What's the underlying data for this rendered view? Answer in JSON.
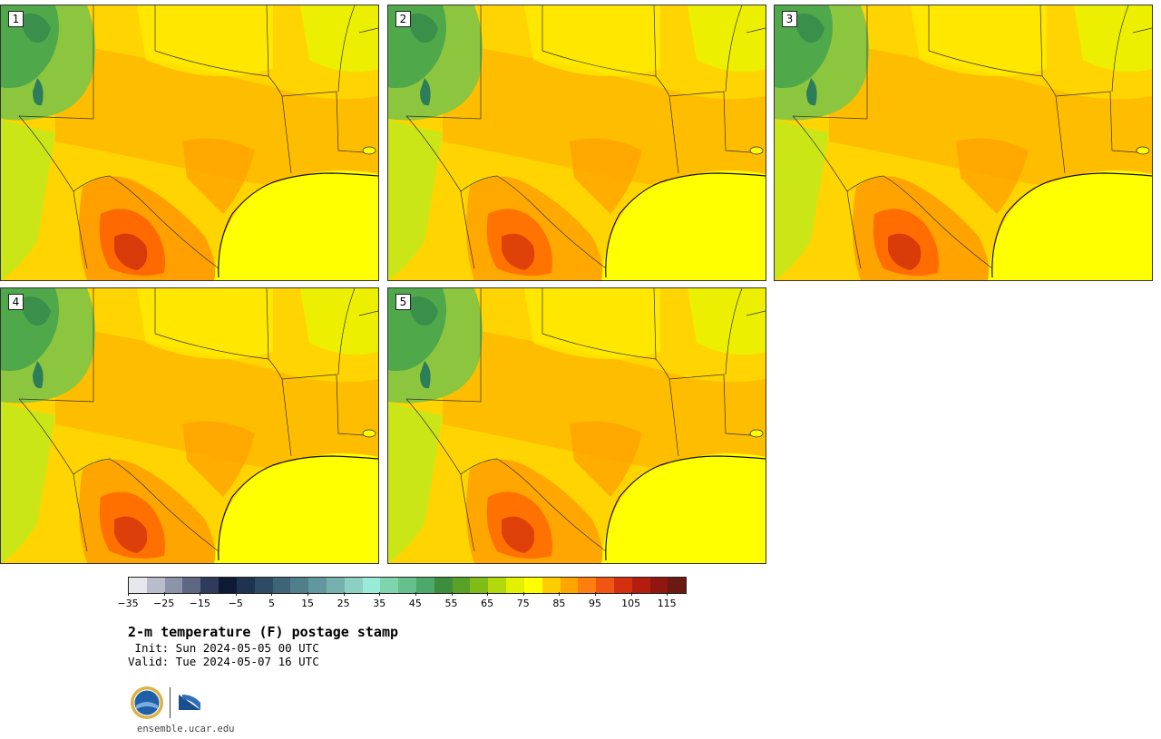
{
  "panels": [
    {
      "label": "1",
      "heat": 1.0
    },
    {
      "label": "2",
      "heat": 0.85
    },
    {
      "label": "3",
      "heat": 0.95
    },
    {
      "label": "4",
      "heat": 0.9
    },
    {
      "label": "5",
      "heat": 0.88
    }
  ],
  "colorbar": {
    "colors": [
      "#e6e8ee",
      "#b9bccb",
      "#8e94a8",
      "#5e6784",
      "#303b5c",
      "#0e1a35",
      "#1d3350",
      "#2e4b66",
      "#3e6477",
      "#507f8b",
      "#63979f",
      "#78b0b0",
      "#8ccfc3",
      "#99ead7",
      "#7fd3ad",
      "#66bf8c",
      "#4ea86b",
      "#3c8e3d",
      "#58a126",
      "#80bc17",
      "#b3d90c",
      "#e3f000",
      "#ffff00",
      "#ffcc00",
      "#ffa500",
      "#ff7f0e",
      "#f05513",
      "#d2300f",
      "#b31d10",
      "#8f1710",
      "#6a1a10"
    ],
    "ticks": [
      "−35",
      "−25",
      "−15",
      "−5",
      "5",
      "15",
      "25",
      "35",
      "45",
      "55",
      "65",
      "75",
      "85",
      "95",
      "105",
      "115"
    ]
  },
  "title": "2-m temperature (F) postage stamp",
  "init": " Init: Sun 2024-05-05 00 UTC",
  "valid": "Valid: Tue 2024-05-07 16 UTC",
  "logos": {
    "nsf": "NSF",
    "ncar": "NCAR"
  },
  "url": "ensemble.ucar.edu"
}
